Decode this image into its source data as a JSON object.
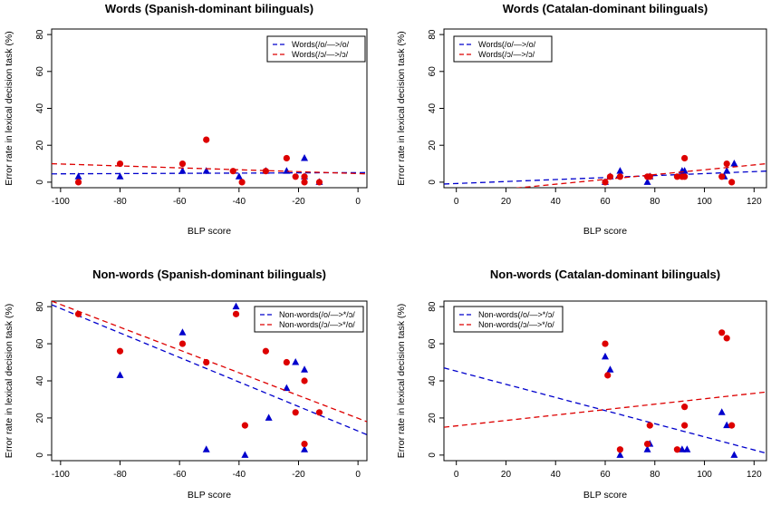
{
  "chart_data": [
    {
      "type": "scatter",
      "title": "Words (Spanish-dominant bilinguals)",
      "xlabel": "BLP score",
      "ylabel": "Error rate in lexical decision task (%)",
      "xlim": [
        -103,
        3
      ],
      "ylim": [
        -3,
        83
      ],
      "xticks": [
        -100,
        -80,
        -60,
        -40,
        -20,
        0
      ],
      "yticks": [
        0,
        20,
        40,
        60,
        80
      ],
      "legend": [
        "Words(/o/—>/o/",
        "Words(/ɔ/—>/ɔ/"
      ],
      "series": [
        {
          "name": "Words(/o/—>/o/",
          "color": "#0000cc",
          "marker": "triangle",
          "x": [
            -94,
            -80,
            -59,
            -51,
            -40,
            -31,
            -24,
            -18,
            -18,
            -13
          ],
          "y": [
            3,
            3,
            6,
            6,
            3,
            6,
            6,
            13,
            3,
            0
          ],
          "fit": [
            [
              -103,
              4.5
            ],
            [
              3,
              5.2
            ]
          ]
        },
        {
          "name": "Words(/ɔ/—>/ɔ/",
          "color": "#dd0000",
          "marker": "circle",
          "x": [
            -94,
            -80,
            -59,
            -51,
            -42,
            -39,
            -31,
            -24,
            -21,
            -18,
            -18,
            -13
          ],
          "y": [
            0,
            10,
            10,
            23,
            6,
            0,
            6,
            13,
            3,
            3,
            0,
            0
          ],
          "fit": [
            [
              -103,
              10
            ],
            [
              3,
              4.5
            ]
          ]
        }
      ]
    },
    {
      "type": "scatter",
      "title": "Words (Catalan-dominant bilinguals)",
      "xlabel": "BLP score",
      "ylabel": "Error rate in lexical decision task (%)",
      "xlim": [
        -5,
        125
      ],
      "ylim": [
        -3,
        83
      ],
      "xticks": [
        0,
        20,
        40,
        60,
        80,
        100,
        120
      ],
      "yticks": [
        0,
        20,
        40,
        60,
        80
      ],
      "legend": [
        "Words(/o/—>/o/",
        "Words(/ɔ/—>/ɔ/"
      ],
      "series": [
        {
          "name": "Words(/o/—>/o/",
          "color": "#0000cc",
          "marker": "triangle",
          "x": [
            60,
            62,
            66,
            77,
            78,
            91,
            92,
            108,
            109,
            112
          ],
          "y": [
            0,
            3,
            6,
            0,
            3,
            6,
            6,
            3,
            6,
            10
          ],
          "fit": [
            [
              -5,
              -1
            ],
            [
              125,
              6
            ]
          ]
        },
        {
          "name": "Words(/ɔ/—>/ɔ/",
          "color": "#dd0000",
          "marker": "circle",
          "x": [
            60,
            62,
            66,
            77,
            78,
            89,
            91,
            92,
            92,
            107,
            109,
            111
          ],
          "y": [
            0,
            3,
            3,
            3,
            3,
            3,
            3,
            3,
            13,
            3,
            10,
            0
          ],
          "fit": [
            [
              -5,
              -7
            ],
            [
              125,
              10
            ]
          ]
        }
      ]
    },
    {
      "type": "scatter",
      "title": "Non-words (Spanish-dominant bilinguals)",
      "xlabel": "BLP score",
      "ylabel": "Error rate in lexical decision task (%)",
      "xlim": [
        -103,
        3
      ],
      "ylim": [
        -3,
        83
      ],
      "xticks": [
        -100,
        -80,
        -60,
        -40,
        -20,
        0
      ],
      "yticks": [
        0,
        20,
        40,
        60,
        80
      ],
      "legend": [
        "Non-words(/o/—>*/ɔ/",
        "Non-words(/ɔ/—>*/o/"
      ],
      "series": [
        {
          "name": "Non-words(/o/—>*/ɔ/",
          "color": "#0000cc",
          "marker": "triangle",
          "x": [
            -80,
            -59,
            -51,
            -41,
            -38,
            -30,
            -24,
            -21,
            -18,
            -18
          ],
          "y": [
            43,
            66,
            3,
            80,
            0,
            20,
            36,
            50,
            46,
            3
          ],
          "fit": [
            [
              -103,
              81
            ],
            [
              3,
              11
            ]
          ]
        },
        {
          "name": "Non-words(/ɔ/—>*/o/",
          "color": "#dd0000",
          "marker": "circle",
          "x": [
            -94,
            -80,
            -59,
            -51,
            -41,
            -38,
            -31,
            -24,
            -21,
            -18,
            -18,
            -13
          ],
          "y": [
            76,
            56,
            60,
            50,
            76,
            16,
            56,
            50,
            23,
            40,
            6,
            23
          ],
          "fit": [
            [
              -103,
              83
            ],
            [
              3,
              18
            ]
          ]
        }
      ]
    },
    {
      "type": "scatter",
      "title": "Non-words (Catalan-dominant bilinguals)",
      "xlabel": "BLP score",
      "ylabel": "Error rate in lexical decision task (%)",
      "xlim": [
        -5,
        125
      ],
      "ylim": [
        -3,
        83
      ],
      "xticks": [
        0,
        20,
        40,
        60,
        80,
        100,
        120
      ],
      "yticks": [
        0,
        20,
        40,
        60,
        80
      ],
      "legend": [
        "Non-words(/o/—>*/ɔ/",
        "Non-words(/ɔ/—>*/o/"
      ],
      "series": [
        {
          "name": "Non-words(/o/—>*/ɔ/",
          "color": "#0000cc",
          "marker": "triangle",
          "x": [
            60,
            62,
            66,
            77,
            78,
            91,
            93,
            107,
            109,
            112
          ],
          "y": [
            53,
            46,
            0,
            3,
            6,
            3,
            3,
            23,
            16,
            0
          ],
          "fit": [
            [
              -5,
              47
            ],
            [
              125,
              1
            ]
          ]
        },
        {
          "name": "Non-words(/ɔ/—>*/o/",
          "color": "#dd0000",
          "marker": "circle",
          "x": [
            60,
            61,
            66,
            77,
            78,
            89,
            92,
            92,
            107,
            109,
            111
          ],
          "y": [
            60,
            43,
            3,
            6,
            16,
            3,
            16,
            26,
            66,
            63,
            16
          ],
          "fit": [
            [
              -5,
              15
            ],
            [
              125,
              34
            ]
          ]
        }
      ]
    }
  ]
}
